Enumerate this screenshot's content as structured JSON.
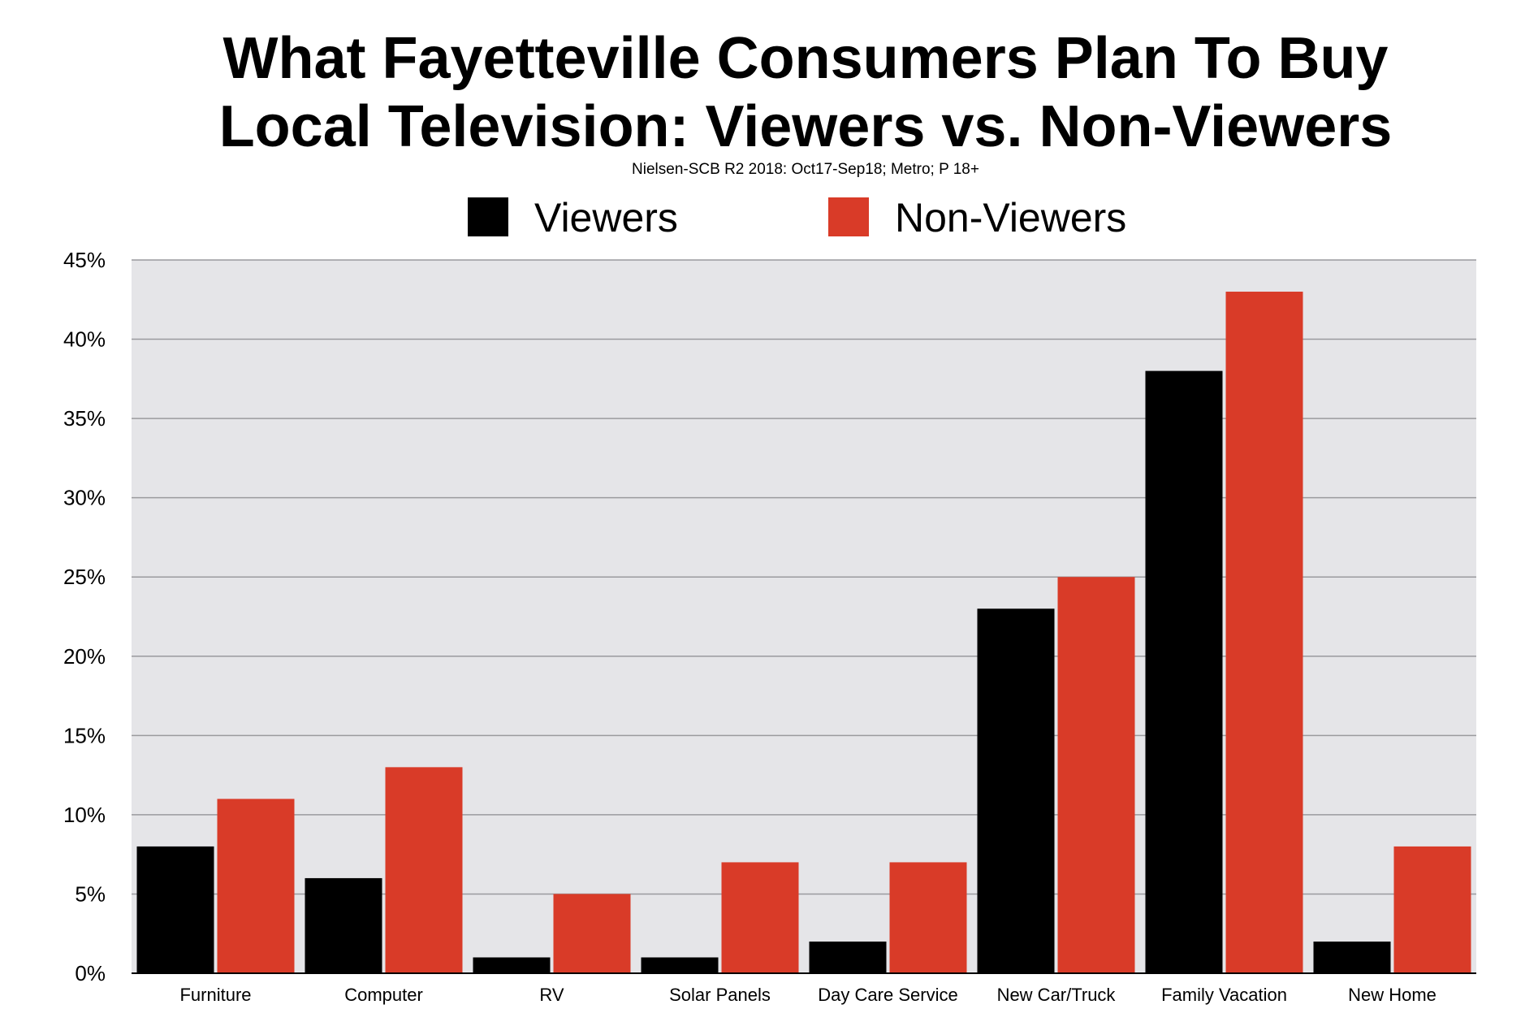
{
  "chart_data": {
    "type": "bar",
    "title_line1": "What Fayetteville Consumers Plan To Buy",
    "title_line2": "Local Television: Viewers vs. Non-Viewers",
    "subtitle": "Nielsen-SCB R2 2018: Oct17-Sep18; Metro; P 18+",
    "categories": [
      "Furniture",
      "Computer",
      "RV",
      "Solar Panels",
      "Day Care Service",
      "New Car/Truck",
      "Family Vacation",
      "New Home"
    ],
    "series": [
      {
        "name": "Viewers",
        "color": "#000000",
        "values": [
          8,
          6,
          1,
          1,
          2,
          23,
          38,
          2
        ]
      },
      {
        "name": "Non-Viewers",
        "color": "#d93b28",
        "values": [
          11,
          13,
          5,
          7,
          7,
          25,
          43,
          8
        ]
      }
    ],
    "yticks": [
      "0%",
      "5%",
      "10%",
      "15%",
      "20%",
      "25%",
      "30%",
      "35%",
      "40%",
      "45%"
    ],
    "ylim": [
      0,
      45
    ],
    "grid": true,
    "legend_position": "top-center",
    "plot_background": "#e5e5e8"
  }
}
